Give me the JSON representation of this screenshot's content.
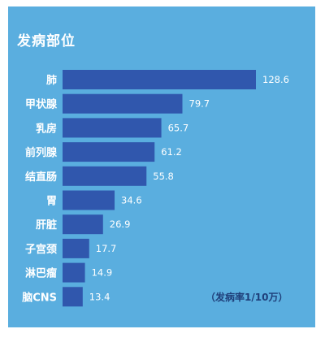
{
  "colors": {
    "panel": "#5aaedf",
    "bar": "#3057ad",
    "label": "#ffffff",
    "value": "#ffffff",
    "unit": "#1f3f7a"
  },
  "chart_data": {
    "type": "bar",
    "orientation": "horizontal",
    "title": "发病部位",
    "unit_note": "（发病率1/10万）",
    "categories": [
      "肺",
      "甲状腺",
      "乳房",
      "前列腺",
      "结直肠",
      "胃",
      "肝脏",
      "子宫颈",
      "淋巴瘤",
      "脑CNS"
    ],
    "values": [
      128.6,
      79.7,
      65.7,
      61.2,
      55.8,
      34.6,
      26.9,
      17.7,
      14.9,
      13.4
    ],
    "value_labels": [
      "128.6",
      "79.7",
      "65.7",
      "61.2",
      "55.8",
      "34.6",
      "26.9",
      "17.7",
      "14.9",
      "13.4"
    ],
    "xlabel": "",
    "ylabel": "",
    "grid": false,
    "legend": false
  }
}
